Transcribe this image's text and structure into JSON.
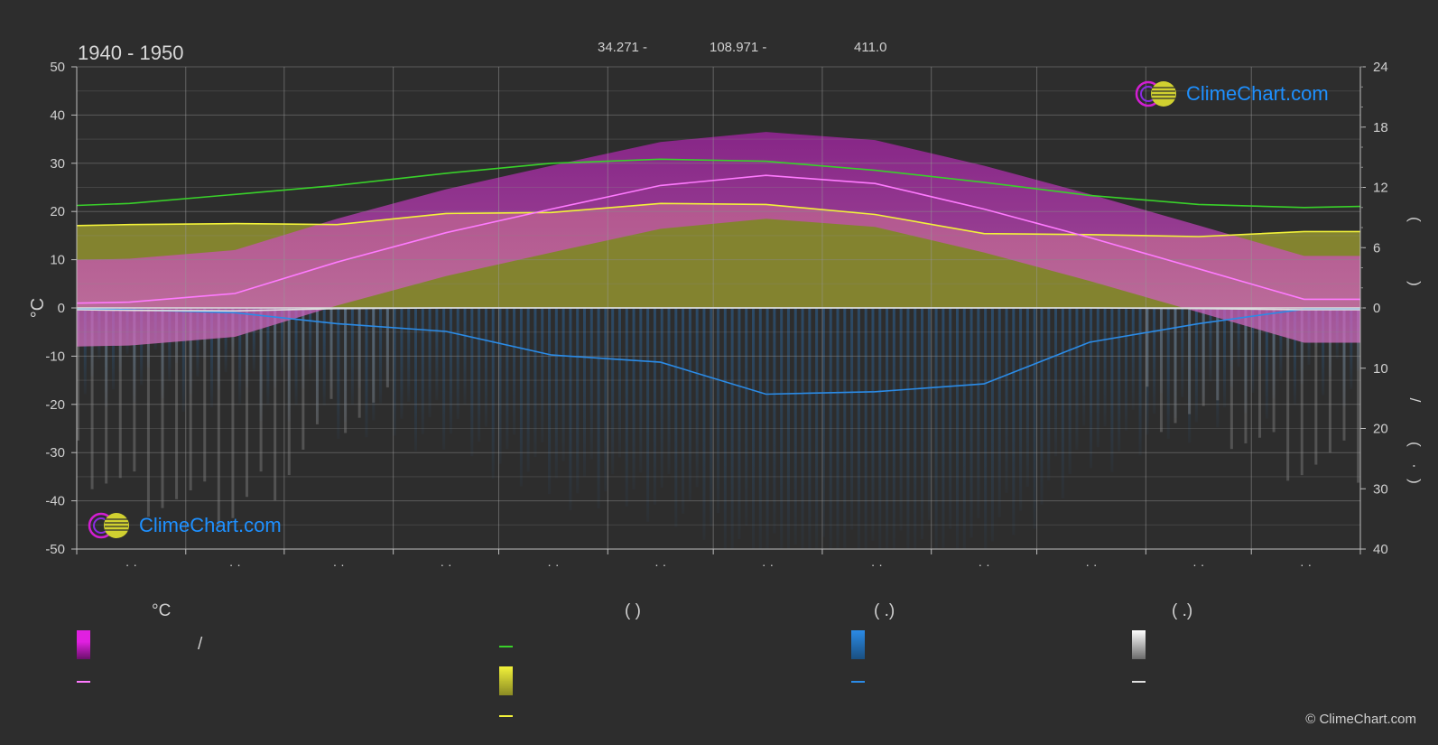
{
  "header": {
    "title": "1940 - 1950",
    "latitude": "34.271 -",
    "longitude": "108.971 -",
    "elevation": "411.0"
  },
  "chart_data": {
    "type": "area",
    "title": "1940 - 1950",
    "ylabel_left": "°C",
    "ylim_left": [
      -50,
      50
    ],
    "yticks_left": [
      "50",
      "40",
      "30",
      "20",
      "10",
      "0",
      "-10",
      "-20",
      "-30",
      "-40",
      "-50"
    ],
    "yticks_right_sun": [
      "24",
      "18",
      "12",
      "6",
      "0"
    ],
    "yticks_right_rain": [
      "10",
      "20",
      "30",
      "40"
    ],
    "right_axis_glyphs": [
      "(",
      ")",
      "/",
      "(",
      "·",
      ")"
    ],
    "month_tick_labels": [
      "· ·",
      "· ·",
      "· ·",
      "· ·",
      "· ·",
      "· ·",
      "· ·",
      "· ·",
      "· ·",
      "· ·",
      "· ·",
      "· ·"
    ],
    "x_days": [
      0,
      15,
      45,
      74,
      105,
      135,
      166,
      196,
      227,
      258,
      288,
      319,
      349,
      365
    ],
    "series": [
      {
        "key": "daylight_hours",
        "axis": "sun",
        "color": "#39d12a",
        "values": [
          10.2,
          10.4,
          11.3,
          12.2,
          13.4,
          14.4,
          14.8,
          14.6,
          13.7,
          12.5,
          11.2,
          10.3,
          10.0,
          10.1
        ]
      },
      {
        "key": "sunshine_hours",
        "axis": "sun",
        "color": "#f2f23a",
        "values": [
          8.2,
          8.3,
          8.4,
          8.3,
          9.4,
          9.5,
          10.4,
          10.3,
          9.3,
          7.4,
          7.3,
          7.1,
          7.6,
          7.6
        ]
      },
      {
        "key": "mean_daily_temperature",
        "axis": "temp",
        "color": "#ff7aff",
        "values": [
          1.0,
          1.2,
          3.0,
          9.5,
          15.6,
          20.5,
          25.4,
          27.5,
          25.8,
          20.5,
          14.6,
          8.1,
          1.8,
          1.8
        ]
      },
      {
        "key": "mean_daily_precipitation",
        "axis": "rain",
        "color": "#2b8be6",
        "values": [
          0.1,
          0.3,
          0.8,
          2.6,
          3.9,
          7.8,
          9.0,
          14.3,
          13.9,
          12.6,
          5.7,
          2.6,
          0.2,
          0.2
        ]
      },
      {
        "key": "mean_daily_snowfall",
        "axis": "rain",
        "color": "#e0e0e0",
        "values": [
          0.3,
          0.4,
          0.5,
          0.1,
          0.0,
          0.0,
          0.0,
          0.0,
          0.0,
          0.0,
          0.0,
          0.1,
          0.3,
          0.3
        ]
      }
    ],
    "grid": true
  },
  "legend": {
    "col1_header": "°C",
    "col2_header": "(          )",
    "col3_header": "(   .)",
    "col4_header": "(   .)",
    "slash": "/"
  },
  "colors": {
    "background": "#2d2d2d",
    "temp_range": "#e020e0",
    "sunshine_fill": "#b4b432",
    "daylight": "#39d12a",
    "sunshine": "#f2f23a",
    "precipitation": "#2b8be6",
    "snow": "#e0e0e0",
    "logo": "#1e90ff"
  },
  "logo": {
    "text": "ClimeChart.com"
  },
  "copyright": "© ClimeChart.com"
}
